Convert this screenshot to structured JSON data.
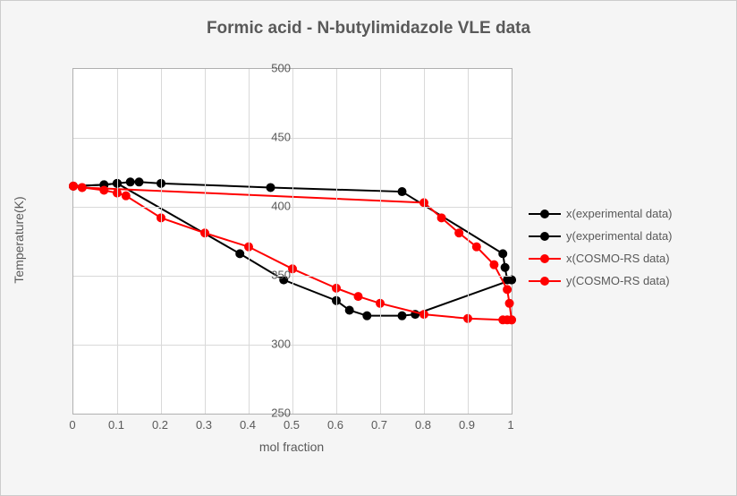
{
  "chart": {
    "title": "Formic acid - N-butylimidazole VLE data",
    "type": "line",
    "xlabel": "mol fraction",
    "ylabel": "Temperature(K)",
    "xlim": [
      0,
      1
    ],
    "ylim": [
      250,
      500
    ],
    "xtick_step": 0.1,
    "ytick_step": 50,
    "xticks": [
      0,
      0.1,
      0.2,
      0.3,
      0.4,
      0.5,
      0.6,
      0.7,
      0.8,
      0.9,
      1
    ],
    "yticks": [
      250,
      300,
      350,
      400,
      450,
      500
    ],
    "background_color": "#f5f5f5",
    "plot_background_color": "#ffffff",
    "grid_color": "#d9d9d9",
    "text_color": "#595959",
    "title_fontsize": 19,
    "label_fontsize": 14,
    "tick_fontsize": 13,
    "line_width": 2,
    "marker_size": 5,
    "series": {
      "x_exp": {
        "label": "x(experimental data)",
        "color": "#000000",
        "marker": "circle",
        "x": [
          0.0,
          0.07,
          0.1,
          0.13,
          0.15,
          0.2,
          0.45,
          0.75,
          0.98,
          0.985,
          0.99,
          1.0
        ],
        "y": [
          415,
          416,
          417,
          418,
          418,
          417,
          414,
          411,
          366,
          356,
          347,
          347
        ]
      },
      "y_exp": {
        "label": "y(experimental data)",
        "color": "#000000",
        "marker": "circle",
        "x": [
          0.0,
          0.07,
          0.1,
          0.38,
          0.48,
          0.6,
          0.63,
          0.67,
          0.75,
          0.78,
          1.0
        ],
        "y": [
          415,
          416,
          417,
          366,
          347,
          332,
          325,
          321,
          321,
          322,
          347
        ]
      },
      "x_cosmo": {
        "label": "x(COSMO-RS data)",
        "color": "#ff0000",
        "marker": "circle",
        "x": [
          0.0,
          0.02,
          0.8,
          0.84,
          0.88,
          0.92,
          0.96,
          0.99,
          0.995,
          1.0
        ],
        "y": [
          415,
          414,
          403,
          392,
          381,
          371,
          358,
          340,
          330,
          318
        ]
      },
      "y_cosmo": {
        "label": "y(COSMO-RS data)",
        "color": "#ff0000",
        "marker": "circle",
        "x": [
          0.0,
          0.02,
          0.07,
          0.1,
          0.12,
          0.2,
          0.3,
          0.4,
          0.5,
          0.6,
          0.65,
          0.7,
          0.8,
          0.9,
          0.98,
          0.99,
          1.0
        ],
        "y": [
          415,
          414,
          412,
          410,
          408,
          392,
          381,
          371,
          355,
          341,
          335,
          330,
          322,
          319,
          318,
          318,
          318
        ]
      }
    },
    "legend_order": [
      "x_exp",
      "y_exp",
      "x_cosmo",
      "y_cosmo"
    ],
    "legend_position": "right"
  }
}
